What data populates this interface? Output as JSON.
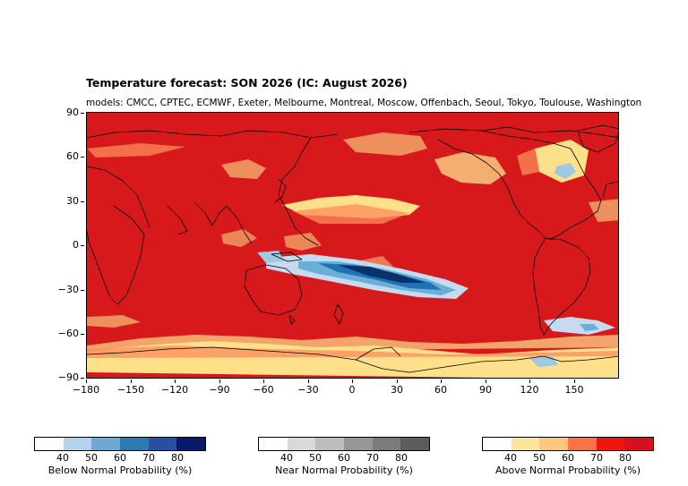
{
  "title": "Temperature forecast: SON 2026 (IC: August 2026)",
  "subtitle": "models: CMCC, CPTEC, ECMWF, Exeter, Melbourne, Montreal, Moscow, Offenbach, Seoul, Tokyo, Toulouse, Washington",
  "map": {
    "y_ticks": [
      "90",
      "60",
      "30",
      "0",
      "−30",
      "−60",
      "−90"
    ],
    "x_ticks": [
      "−180",
      "−150",
      "−120",
      "−90",
      "−60",
      "−30",
      "0",
      "30",
      "60",
      "90",
      "120",
      "150"
    ],
    "colors": {
      "above_dominant": "#d7191c",
      "above_light": "#fee08b",
      "below_strong": "#08306b",
      "below_light": "#9ecae1",
      "coastline": "#000000"
    }
  },
  "colorbars": [
    {
      "label": "Below Normal Probability (%)",
      "ticks": [
        "40",
        "50",
        "60",
        "70",
        "80"
      ],
      "colors": [
        "#ffffff",
        "#b3d3ec",
        "#6fa8d0",
        "#2b7bb0",
        "#2750a3",
        "#08196b"
      ]
    },
    {
      "label": "Near Normal Probability (%)",
      "ticks": [
        "40",
        "50",
        "60",
        "70",
        "80"
      ],
      "colors": [
        "#ffffff",
        "#d9d9d9",
        "#bdbdbd",
        "#969696",
        "#7a7a7a",
        "#5c5c5c"
      ]
    },
    {
      "label": "Above Normal Probability (%)",
      "ticks": [
        "40",
        "50",
        "60",
        "70",
        "80"
      ],
      "colors": [
        "#ffffff",
        "#fde59c",
        "#fdc77f",
        "#fc7146",
        "#ef1410",
        "#d6101e"
      ]
    }
  ]
}
